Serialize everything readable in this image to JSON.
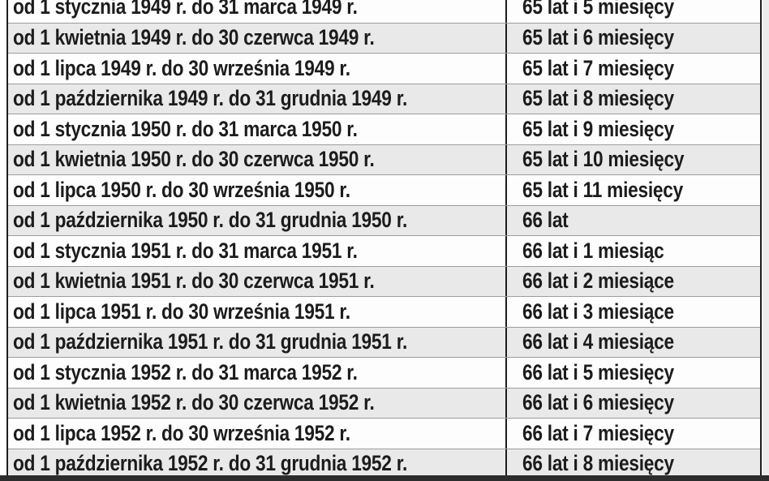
{
  "table": {
    "description_language": "pl",
    "column_semantics": [
      "birth_period",
      "retirement_age"
    ],
    "rows": [
      {
        "period": "od 1 stycznia 1949 r. do 31 marca 1949 r.",
        "age": "65 lat i 5 miesięcy"
      },
      {
        "period": "od 1 kwietnia 1949 r. do 30 czerwca 1949 r.",
        "age": "65 lat i 6 miesięcy"
      },
      {
        "period": "od 1 lipca 1949 r. do 30 września 1949 r.",
        "age": "65 lat i 7 miesięcy"
      },
      {
        "period": "od 1 października 1949 r. do 31 grudnia 1949 r.",
        "age": "65 lat i 8 miesięcy"
      },
      {
        "period": "od 1 stycznia 1950 r. do 31 marca 1950 r.",
        "age": "65 lat i 9 miesięcy"
      },
      {
        "period": "od 1 kwietnia 1950 r. do 30 czerwca 1950 r.",
        "age": "65 lat i 10 miesięcy"
      },
      {
        "period": "od 1 lipca 1950 r. do 30 września 1950 r.",
        "age": "65 lat i 11 miesięcy"
      },
      {
        "period": "od 1 października 1950 r. do 31 grudnia 1950 r.",
        "age": "66 lat"
      },
      {
        "period": "od 1 stycznia 1951 r. do 31 marca 1951 r.",
        "age": "66 lat i 1 miesiąc"
      },
      {
        "period": "od 1 kwietnia 1951 r. do 30 czerwca 1951 r.",
        "age": "66 lat i 2 miesiące"
      },
      {
        "period": "od 1 lipca 1951 r. do 30 września 1951 r.",
        "age": "66 lat i 3 miesiące"
      },
      {
        "period": "od 1 października 1951 r. do 31 grudnia 1951 r.",
        "age": "66 lat i 4 miesiące"
      },
      {
        "period": "od 1 stycznia 1952 r. do 31 marca 1952 r.",
        "age": "66 lat i 5 miesięcy"
      },
      {
        "period": "od 1 kwietnia 1952 r. do 30 czerwca 1952 r.",
        "age": "66 lat i 6 miesięcy"
      },
      {
        "period": "od 1 lipca 1952 r. do 30 września 1952 r.",
        "age": "66 lat i 7 miesięcy"
      },
      {
        "period": "od 1 października 1952 r. do 31 grudnia 1952 r.",
        "age": "66 lat i 8 miesięcy"
      }
    ]
  },
  "colors": {
    "row_white": "#fdfdfd",
    "row_gray": "#e9e9e9",
    "separator": "#9c9c9c",
    "border_dark": "#1e1e1e",
    "text": "#1c1c1c",
    "bottom_bar": "#2c2c2c",
    "right_gutter": "#ececec"
  }
}
